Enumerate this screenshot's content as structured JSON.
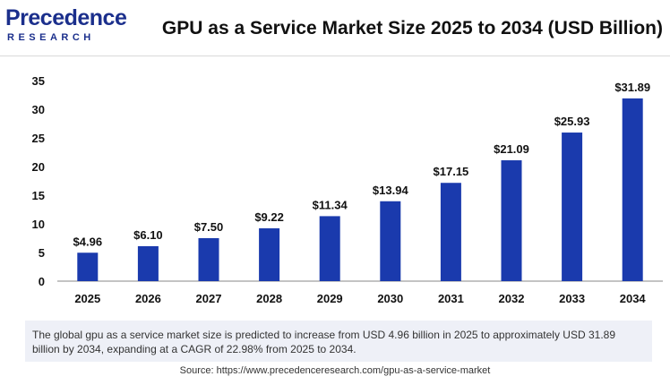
{
  "brand": {
    "name": "Precedence",
    "tagline": "RESEARCH"
  },
  "colors": {
    "bar": "#1a3aad",
    "brand": "#1b2f8c",
    "text": "#111111",
    "axis": "#888888"
  },
  "chart_data": {
    "type": "bar",
    "title": "GPU as a Service Market Size 2025 to 2034 (USD Billion)",
    "categories": [
      "2025",
      "2026",
      "2027",
      "2028",
      "2029",
      "2030",
      "2031",
      "2032",
      "2033",
      "2034"
    ],
    "values": [
      4.96,
      6.1,
      7.5,
      9.22,
      11.34,
      13.94,
      17.15,
      21.09,
      25.93,
      31.89
    ],
    "data_labels": [
      "$4.96",
      "$6.10",
      "$7.50",
      "$9.22",
      "$11.34",
      "$13.94",
      "$17.15",
      "$21.09",
      "$25.93",
      "$31.89"
    ],
    "ylim": [
      0,
      35
    ],
    "yticks": [
      0,
      5,
      10,
      15,
      20,
      25,
      30,
      35
    ],
    "xlabel": "",
    "ylabel": "",
    "grid": false
  },
  "summary": "The global gpu as a service market size is predicted to increase from USD 4.96 billion in 2025 to approximately USD 31.89 billion by 2034, expanding at a CAGR of 22.98% from 2025 to 2034.",
  "source": "Source: https://www.precedenceresearch.com/gpu-as-a-service-market"
}
